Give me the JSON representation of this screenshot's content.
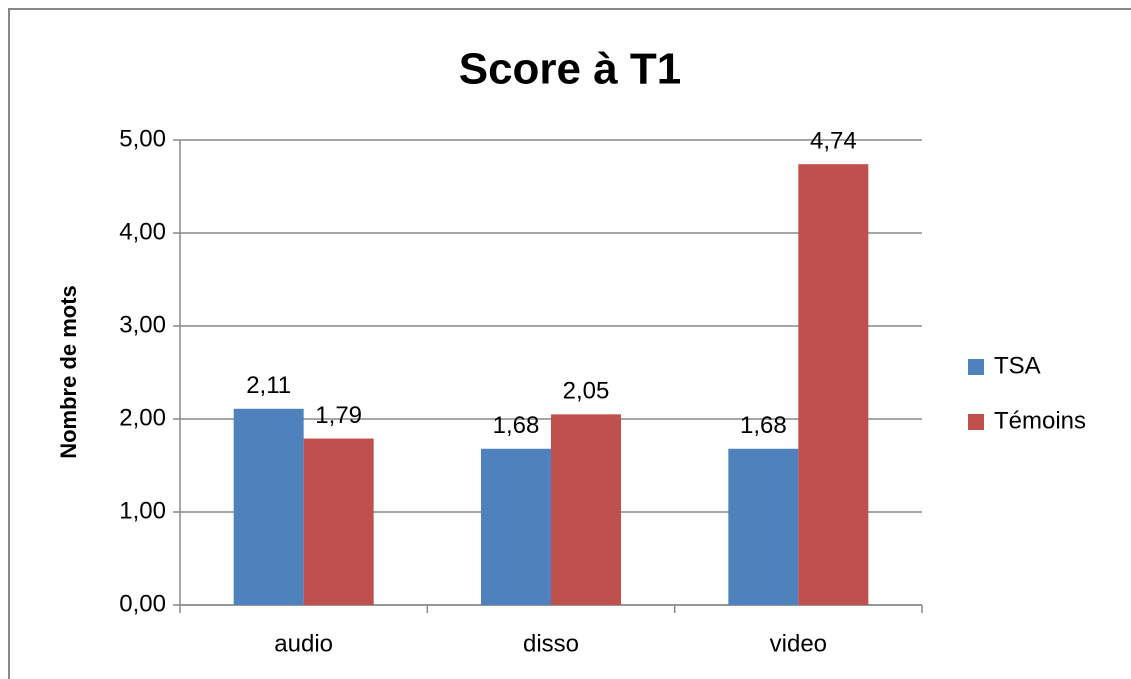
{
  "chart_data": {
    "type": "bar",
    "title": "Score à T1",
    "y_label": "Nombre de mots",
    "categories": [
      "audio",
      "disso",
      "video"
    ],
    "series": [
      {
        "name": "TSA",
        "color": "#4f81bd",
        "values": [
          2.11,
          1.68,
          1.68
        ],
        "value_labels": [
          "2,11",
          "1,68",
          "1,68"
        ]
      },
      {
        "name": "Témoins",
        "color": "#c0504d",
        "values": [
          1.79,
          2.05,
          4.74
        ],
        "value_labels": [
          "1,79",
          "2,05",
          "4,74"
        ]
      }
    ],
    "ylim": [
      0,
      5
    ],
    "yticks": [
      {
        "value": 0,
        "label": "0,00"
      },
      {
        "value": 1,
        "label": "1,00"
      },
      {
        "value": 2,
        "label": "2,00"
      },
      {
        "value": 3,
        "label": "3,00"
      },
      {
        "value": 4,
        "label": "4,00"
      },
      {
        "value": 5,
        "label": "5,00"
      }
    ],
    "grid": true,
    "legend": "right"
  }
}
